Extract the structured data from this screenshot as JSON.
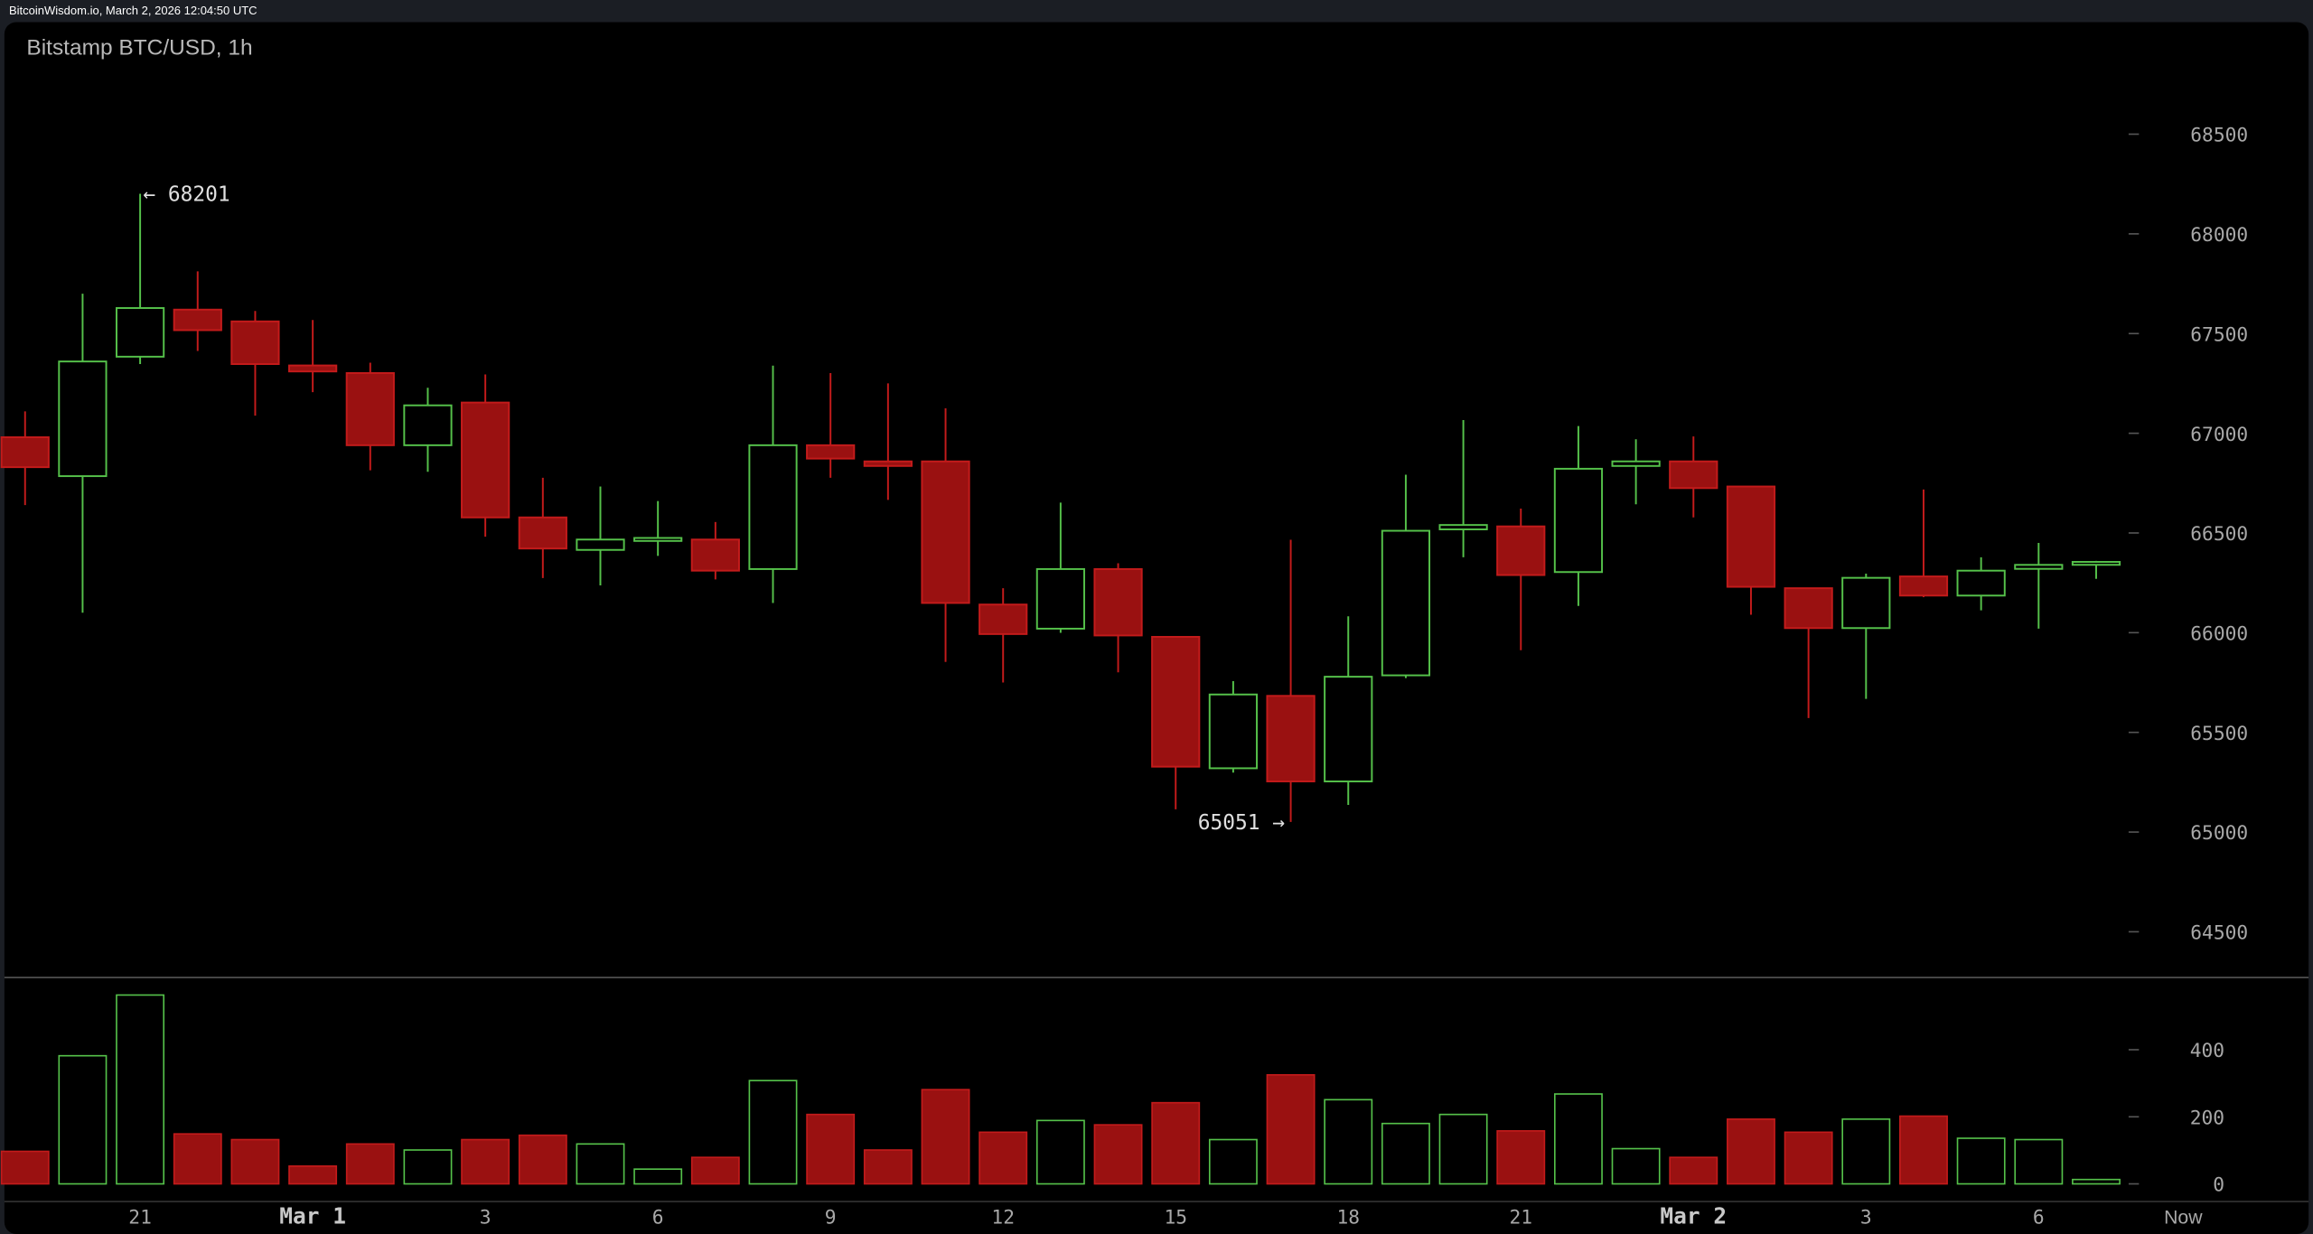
{
  "header": {
    "source": "BitcoinWisdom.io, March 2, 2026 12:04:50 UTC"
  },
  "colors": {
    "up": "#55c14a",
    "down_fill": "#9a1111",
    "down_stroke": "#c31b1b",
    "background": "#000000",
    "axis_text": "#a8a8a8"
  },
  "chart_data": {
    "type": "candlestick",
    "title": "Bitstamp BTC/USD, 1h",
    "ylim": [
      64300,
      68800
    ],
    "yticks": [
      64500,
      65000,
      65500,
      66000,
      66500,
      67000,
      67500,
      68000,
      68500
    ],
    "volume_ylim": [
      0,
      560
    ],
    "volume_ticks": [
      0,
      200,
      400
    ],
    "annotations": [
      {
        "text": "← 68201",
        "index": 2,
        "value": 68201
      },
      {
        "text": "65051 →",
        "index": 22,
        "value": 65051
      }
    ],
    "xticks": [
      {
        "index": 2,
        "label": "21",
        "major": false
      },
      {
        "index": 5,
        "label": "Mar 1",
        "major": true
      },
      {
        "index": 8,
        "label": "3",
        "major": false
      },
      {
        "index": 11,
        "label": "6",
        "major": false
      },
      {
        "index": 14,
        "label": "9",
        "major": false
      },
      {
        "index": 17,
        "label": "12",
        "major": false
      },
      {
        "index": 20,
        "label": "15",
        "major": false
      },
      {
        "index": 23,
        "label": "18",
        "major": false
      },
      {
        "index": 26,
        "label": "21",
        "major": false
      },
      {
        "index": 29,
        "label": "Mar 2",
        "major": true
      },
      {
        "index": 32,
        "label": "3",
        "major": false
      },
      {
        "index": 35,
        "label": "6",
        "major": false
      }
    ],
    "now_label": "Now",
    "candles": [
      {
        "o": 66980,
        "h": 67110,
        "l": 66640,
        "c": 66830,
        "v": 97
      },
      {
        "o": 66785,
        "h": 67700,
        "l": 66100,
        "c": 67360,
        "v": 382
      },
      {
        "o": 67384,
        "h": 68201,
        "l": 67347,
        "c": 67628,
        "v": 563
      },
      {
        "o": 67620,
        "h": 67812,
        "l": 67413,
        "c": 67517,
        "v": 149
      },
      {
        "o": 67561,
        "h": 67613,
        "l": 67088,
        "c": 67347,
        "v": 132
      },
      {
        "o": 67340,
        "h": 67568,
        "l": 67206,
        "c": 67310,
        "v": 53
      },
      {
        "o": 67302,
        "h": 67354,
        "l": 66814,
        "c": 66940,
        "v": 119
      },
      {
        "o": 66940,
        "h": 67228,
        "l": 66807,
        "c": 67140,
        "v": 101
      },
      {
        "o": 67154,
        "h": 67295,
        "l": 66481,
        "c": 66578,
        "v": 132
      },
      {
        "o": 66578,
        "h": 66777,
        "l": 66274,
        "c": 66422,
        "v": 145
      },
      {
        "o": 66415,
        "h": 66733,
        "l": 66237,
        "c": 66467,
        "v": 119
      },
      {
        "o": 66460,
        "h": 66660,
        "l": 66385,
        "c": 66475,
        "v": 44
      },
      {
        "o": 66467,
        "h": 66555,
        "l": 66267,
        "c": 66311,
        "v": 79
      },
      {
        "o": 66319,
        "h": 67339,
        "l": 66149,
        "c": 66940,
        "v": 308
      },
      {
        "o": 66940,
        "h": 67302,
        "l": 66777,
        "c": 66873,
        "v": 207
      },
      {
        "o": 66859,
        "h": 67250,
        "l": 66666,
        "c": 66836,
        "v": 101
      },
      {
        "o": 66859,
        "h": 67125,
        "l": 65853,
        "c": 66149,
        "v": 281
      },
      {
        "o": 66141,
        "h": 66223,
        "l": 65750,
        "c": 65993,
        "v": 154
      },
      {
        "o": 66020,
        "h": 66652,
        "l": 65999,
        "c": 66319,
        "v": 189
      },
      {
        "o": 66319,
        "h": 66348,
        "l": 65801,
        "c": 65986,
        "v": 176
      },
      {
        "o": 65979,
        "h": 65979,
        "l": 65114,
        "c": 65328,
        "v": 242
      },
      {
        "o": 65320,
        "h": 65757,
        "l": 65298,
        "c": 65690,
        "v": 132
      },
      {
        "o": 65683,
        "h": 66466,
        "l": 65051,
        "c": 65254,
        "v": 325
      },
      {
        "o": 65254,
        "h": 66082,
        "l": 65136,
        "c": 65779,
        "v": 251
      },
      {
        "o": 65786,
        "h": 66792,
        "l": 65772,
        "c": 66511,
        "v": 180
      },
      {
        "o": 66518,
        "h": 67066,
        "l": 66378,
        "c": 66540,
        "v": 207
      },
      {
        "o": 66533,
        "h": 66622,
        "l": 65912,
        "c": 66289,
        "v": 158
      },
      {
        "o": 66304,
        "h": 67036,
        "l": 66134,
        "c": 66822,
        "v": 268
      },
      {
        "o": 66836,
        "h": 66970,
        "l": 66644,
        "c": 66859,
        "v": 105
      },
      {
        "o": 66859,
        "h": 66984,
        "l": 66578,
        "c": 66725,
        "v": 79
      },
      {
        "o": 66733,
        "h": 66733,
        "l": 66090,
        "c": 66230,
        "v": 193
      },
      {
        "o": 66223,
        "h": 66223,
        "l": 65572,
        "c": 66023,
        "v": 154
      },
      {
        "o": 66023,
        "h": 66296,
        "l": 65668,
        "c": 66275,
        "v": 193
      },
      {
        "o": 66282,
        "h": 66718,
        "l": 66178,
        "c": 66186,
        "v": 202
      },
      {
        "o": 66186,
        "h": 66378,
        "l": 66112,
        "c": 66311,
        "v": 136
      },
      {
        "o": 66320,
        "h": 66450,
        "l": 66020,
        "c": 66340,
        "v": 132
      },
      {
        "o": 66345,
        "h": 66360,
        "l": 66270,
        "c": 66355,
        "v": 13
      }
    ]
  }
}
